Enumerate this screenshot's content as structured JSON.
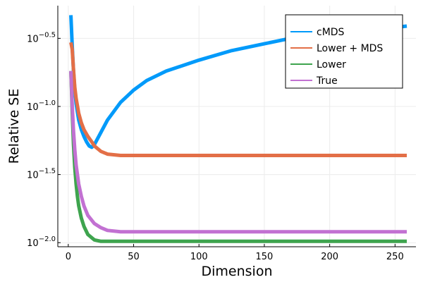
{
  "chart_data": {
    "type": "line",
    "title": "",
    "xlabel": "Dimension",
    "ylabel": "Relative SE",
    "xlim": [
      -8,
      266
    ],
    "ylim_log10": [
      -2.03,
      -0.26
    ],
    "yscale": "log10",
    "grid": true,
    "legend_position": "top-right",
    "x_ticks": [
      0,
      50,
      100,
      150,
      200,
      250
    ],
    "x_tick_labels": [
      "0",
      "50",
      "100",
      "150",
      "200",
      "250"
    ],
    "y_ticks_log10": [
      -2.0,
      -1.5,
      -1.0,
      -0.5
    ],
    "y_tick_bases": [
      "10",
      "10",
      "10",
      "10"
    ],
    "y_tick_exponents": [
      "−2.0",
      "−1.5",
      "−1.0",
      "−0.5"
    ],
    "series": [
      {
        "name": "cMDS",
        "color": "#009AFA",
        "x": [
          2,
          3,
          4,
          5,
          6,
          8,
          10,
          12,
          14,
          16,
          18,
          20,
          25,
          30,
          40,
          50,
          60,
          75,
          100,
          125,
          150,
          175,
          200,
          225,
          250,
          259
        ],
        "log10_y": [
          -0.33,
          -0.55,
          -0.74,
          -0.88,
          -0.98,
          -1.1,
          -1.17,
          -1.22,
          -1.26,
          -1.29,
          -1.3,
          -1.28,
          -1.19,
          -1.1,
          -0.97,
          -0.88,
          -0.81,
          -0.74,
          -0.66,
          -0.59,
          -0.54,
          -0.49,
          -0.46,
          -0.44,
          -0.42,
          -0.41
        ]
      },
      {
        "name": "Lower + MDS",
        "color": "#E36F47",
        "x": [
          2,
          3,
          4,
          5,
          6,
          8,
          10,
          12,
          15,
          18,
          20,
          25,
          30,
          40,
          50,
          75,
          100,
          150,
          200,
          259
        ],
        "log10_y": [
          -0.53,
          -0.58,
          -0.73,
          -0.86,
          -0.94,
          -1.05,
          -1.12,
          -1.17,
          -1.22,
          -1.26,
          -1.29,
          -1.33,
          -1.35,
          -1.36,
          -1.36,
          -1.36,
          -1.36,
          -1.36,
          -1.36,
          -1.36
        ]
      },
      {
        "name": "Lower",
        "color": "#3EA44E",
        "x": [
          2,
          3,
          4,
          5,
          6,
          7,
          8,
          10,
          12,
          15,
          20,
          25,
          30,
          40,
          50,
          75,
          100,
          150,
          200,
          259
        ],
        "log10_y": [
          -0.74,
          -1.03,
          -1.28,
          -1.45,
          -1.57,
          -1.66,
          -1.73,
          -1.82,
          -1.88,
          -1.94,
          -1.98,
          -1.99,
          -1.99,
          -1.99,
          -1.99,
          -1.99,
          -1.99,
          -1.99,
          -1.99,
          -1.99
        ]
      },
      {
        "name": "True",
        "color": "#C271D2",
        "x": [
          2,
          3,
          4,
          5,
          6,
          8,
          10,
          12,
          15,
          20,
          25,
          30,
          40,
          50,
          75,
          100,
          150,
          200,
          259
        ],
        "log10_y": [
          -0.74,
          -0.99,
          -1.18,
          -1.32,
          -1.43,
          -1.57,
          -1.66,
          -1.73,
          -1.8,
          -1.86,
          -1.89,
          -1.91,
          -1.92,
          -1.92,
          -1.92,
          -1.92,
          -1.92,
          -1.92,
          -1.92
        ]
      }
    ]
  }
}
